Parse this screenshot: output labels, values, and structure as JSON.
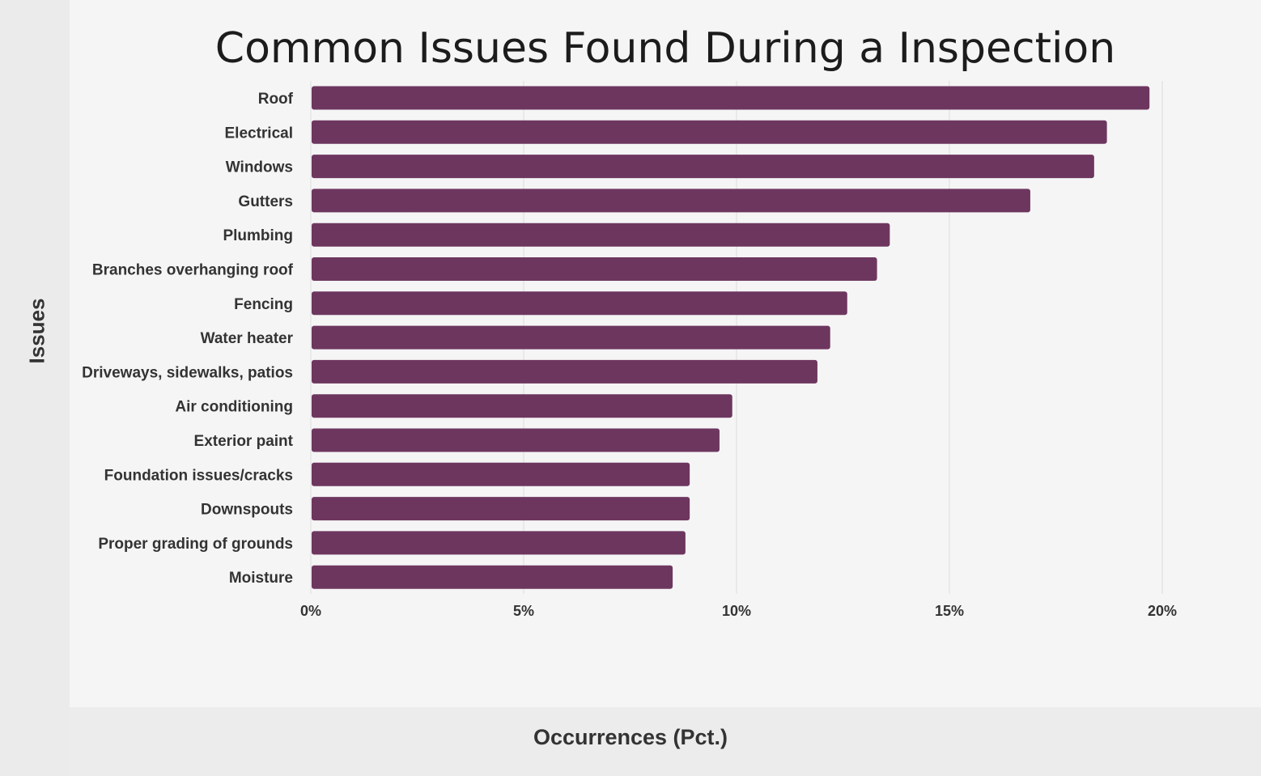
{
  "chart_data": {
    "type": "bar",
    "orientation": "horizontal",
    "title": "Common Issues Found During a Inspection",
    "xlabel": "Occurrences (Pct.)",
    "ylabel": "Issues",
    "xlim": [
      0,
      20
    ],
    "xticks": [
      0,
      5,
      10,
      15,
      20
    ],
    "xtick_labels": [
      "0%",
      "5%",
      "10%",
      "15%",
      "20%"
    ],
    "grid": "vertical",
    "bar_color": "#6d365f",
    "categories": [
      "Roof",
      "Electrical",
      "Windows",
      "Gutters",
      "Plumbing",
      "Branches overhanging roof",
      "Fencing",
      "Water heater",
      "Driveways, sidewalks, patios",
      "Air conditioning",
      "Exterior paint",
      "Foundation issues/cracks",
      "Downspouts",
      "Proper grading of grounds",
      "Moisture"
    ],
    "values": [
      19.7,
      18.7,
      18.4,
      16.9,
      13.6,
      13.3,
      12.6,
      12.2,
      11.9,
      9.9,
      9.6,
      8.9,
      8.9,
      8.8,
      8.5
    ]
  }
}
